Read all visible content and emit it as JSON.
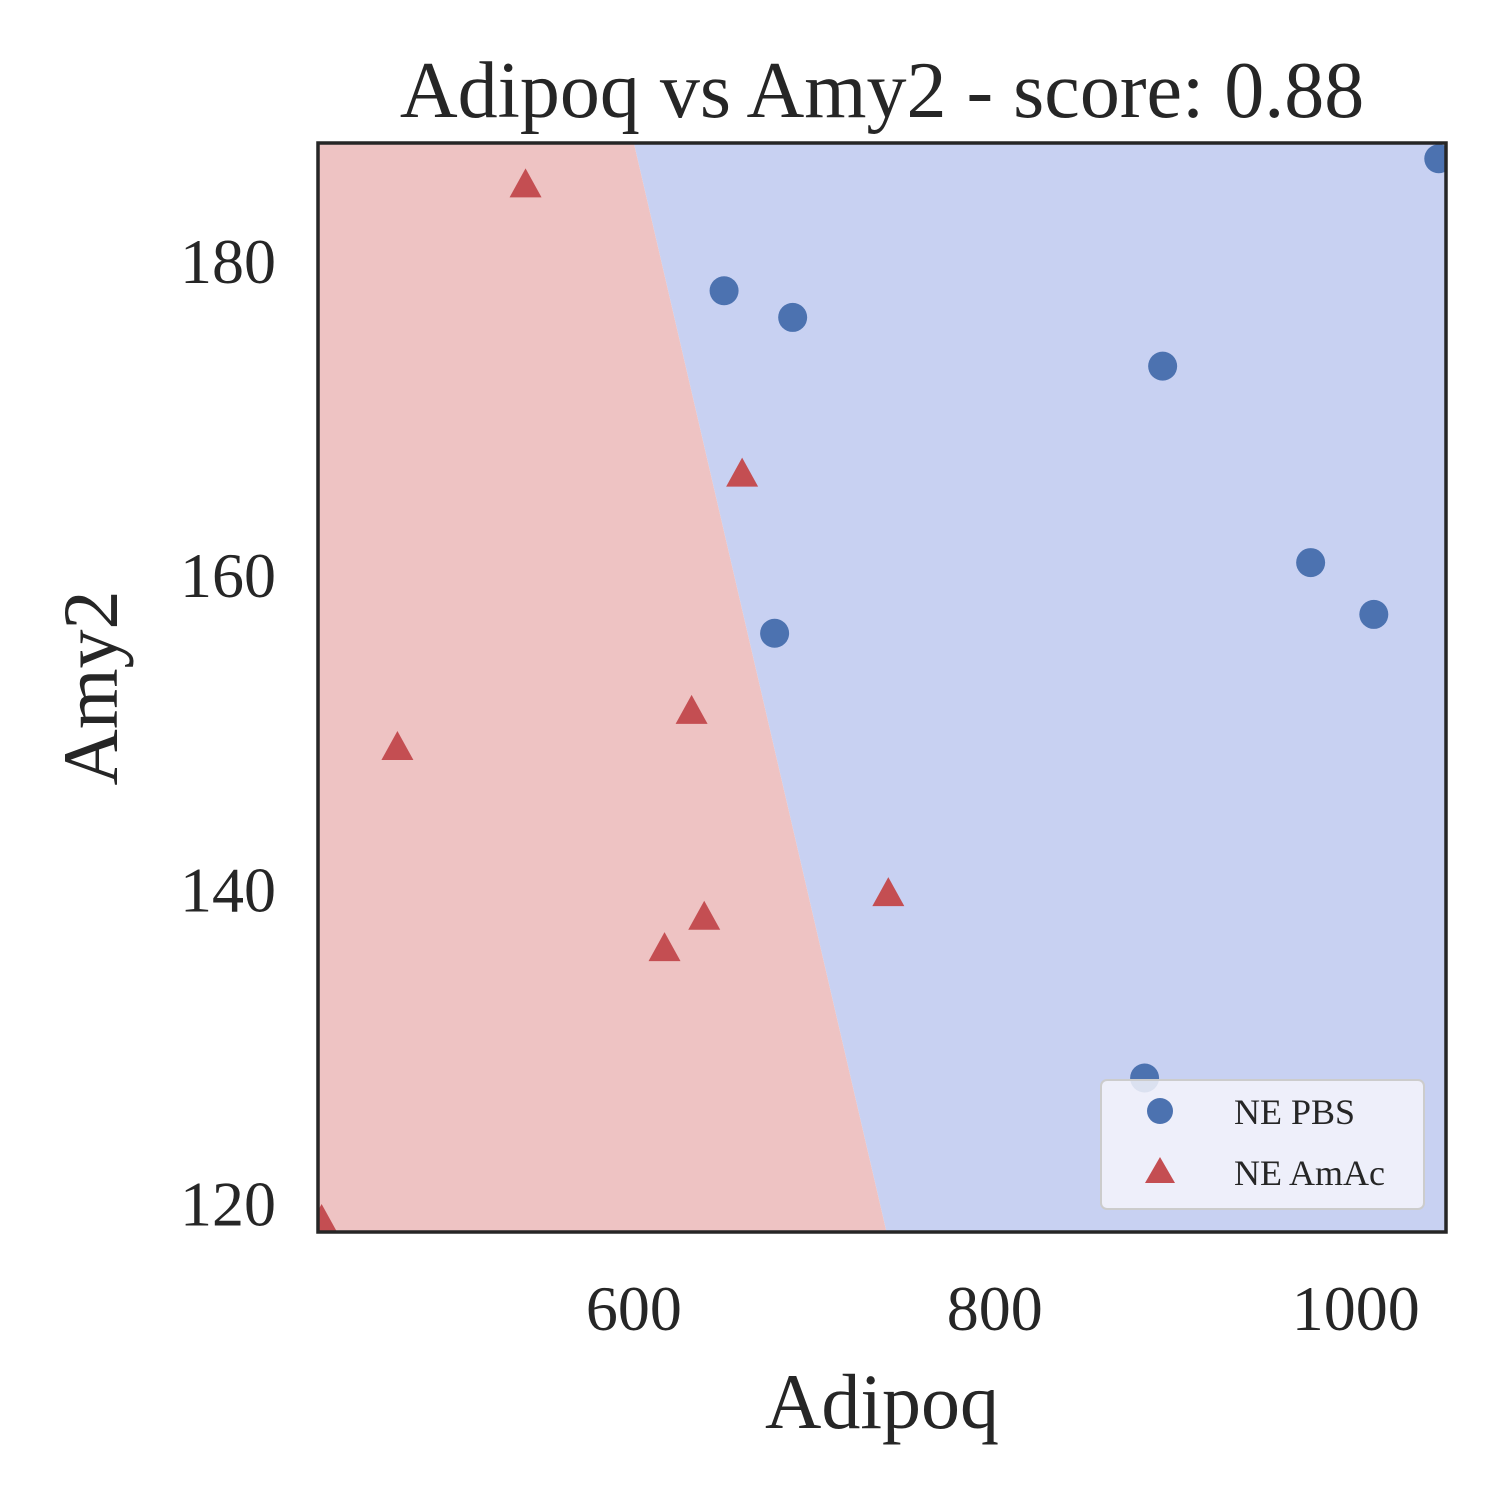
{
  "chart_data": {
    "type": "scatter",
    "title": "Adipoq vs Amy2 - score: 0.88",
    "xlabel": "Adipoq",
    "ylabel": "Amy2",
    "xlim": [
      425,
      1050
    ],
    "ylim": [
      118.2,
      187.5
    ],
    "xticks": [
      {
        "value": 600,
        "label": "600"
      },
      {
        "value": 800,
        "label": "800"
      },
      {
        "value": 1000,
        "label": "1000"
      }
    ],
    "yticks": [
      {
        "value": 120,
        "label": "120"
      },
      {
        "value": 140,
        "label": "140"
      },
      {
        "value": 160,
        "label": "160"
      },
      {
        "value": 180,
        "label": "180"
      }
    ],
    "grid": false,
    "legend_position": "lower-right",
    "decision_boundary": {
      "points": [
        [
          600,
          187.5
        ],
        [
          740,
          118.2
        ]
      ],
      "left_region_class": "NE AmAc",
      "right_region_class": "NE PBS"
    },
    "series": [
      {
        "name": "NE PBS",
        "marker": "circle",
        "color": "#4c72b0",
        "region_color": "#c8d1f2",
        "points": [
          [
            650,
            178.1
          ],
          [
            688,
            176.4
          ],
          [
            893,
            173.3
          ],
          [
            975,
            160.8
          ],
          [
            1010,
            157.5
          ],
          [
            678,
            156.3
          ],
          [
            883,
            128.0
          ],
          [
            1046,
            186.5
          ]
        ]
      },
      {
        "name": "NE AmAc",
        "marker": "triangle",
        "color": "#c44e52",
        "region_color": "#eec3c3",
        "points": [
          [
            540,
            184.8
          ],
          [
            660,
            166.4
          ],
          [
            632,
            151.3
          ],
          [
            469,
            149.0
          ],
          [
            741,
            139.7
          ],
          [
            639,
            138.2
          ],
          [
            617,
            136.2
          ],
          [
            427,
            118.9
          ]
        ]
      }
    ]
  }
}
